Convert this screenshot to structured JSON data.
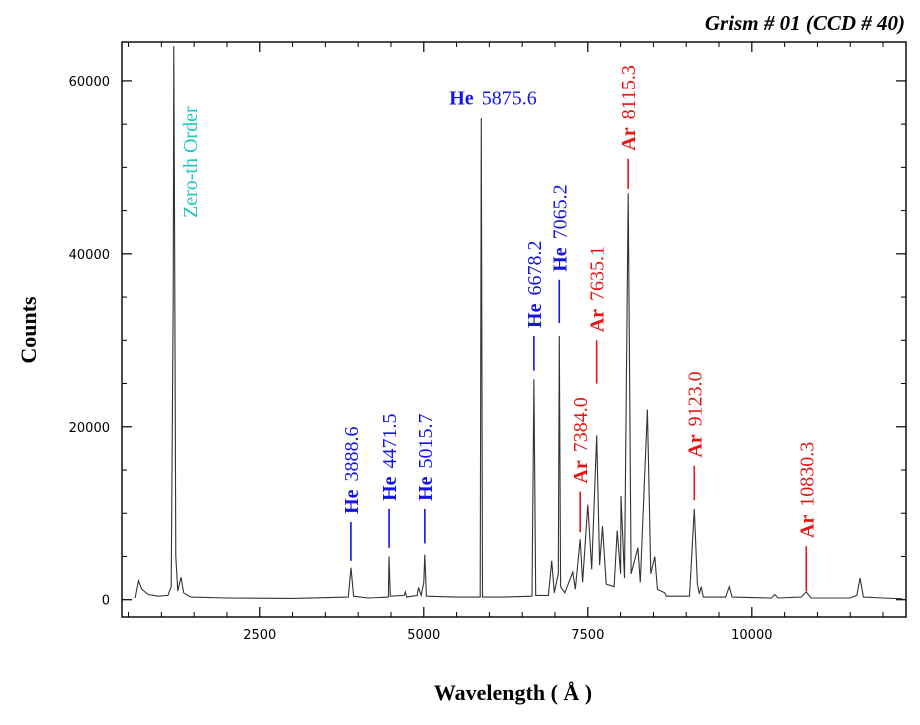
{
  "chart_data": {
    "type": "line",
    "title": "Grism # 01  (CCD # 40)",
    "xlabel": "Wavelength  ( Å )",
    "ylabel": "Counts",
    "xlim": [
      400,
      12350
    ],
    "ylim": [
      -2000,
      64500
    ],
    "xticks": [
      2500,
      5000,
      7500,
      10000
    ],
    "yticks": [
      0,
      20000,
      40000,
      60000
    ],
    "colors": {
      "he": "#1414e6",
      "ar": "#e61414",
      "zero": "#1ac8c8",
      "spectrum": "#333333"
    },
    "series": [
      {
        "values": [
          [
            600,
            200
          ],
          [
            650,
            2200
          ],
          [
            700,
            1200
          ],
          [
            800,
            600
          ],
          [
            950,
            400
          ],
          [
            1100,
            500
          ],
          [
            1150,
            1500
          ],
          [
            1180,
            35000
          ],
          [
            1190,
            64000
          ],
          [
            1200,
            45000
          ],
          [
            1220,
            5000
          ],
          [
            1250,
            1000
          ],
          [
            1300,
            2600
          ],
          [
            1340,
            800
          ],
          [
            1450,
            300
          ],
          [
            2000,
            200
          ],
          [
            3000,
            150
          ],
          [
            3850,
            300
          ],
          [
            3890,
            3700
          ],
          [
            3930,
            400
          ],
          [
            4150,
            200
          ],
          [
            4460,
            300
          ],
          [
            4470,
            5000
          ],
          [
            4490,
            400
          ],
          [
            4700,
            500
          ],
          [
            4720,
            900
          ],
          [
            4740,
            300
          ],
          [
            4900,
            500
          ],
          [
            4920,
            1400
          ],
          [
            4960,
            500
          ],
          [
            5000,
            2000
          ],
          [
            5015,
            5200
          ],
          [
            5040,
            400
          ],
          [
            5500,
            300
          ],
          [
            5860,
            300
          ],
          [
            5876,
            55700
          ],
          [
            5895,
            300
          ],
          [
            6200,
            300
          ],
          [
            6650,
            400
          ],
          [
            6678,
            25500
          ],
          [
            6705,
            500
          ],
          [
            6900,
            500
          ],
          [
            6950,
            4500
          ],
          [
            6990,
            800
          ],
          [
            7050,
            3000
          ],
          [
            7065,
            30500
          ],
          [
            7085,
            1500
          ],
          [
            7150,
            800
          ],
          [
            7272,
            3200
          ],
          [
            7310,
            1200
          ],
          [
            7384,
            7000
          ],
          [
            7420,
            2000
          ],
          [
            7500,
            11000
          ],
          [
            7560,
            3500
          ],
          [
            7635,
            19000
          ],
          [
            7680,
            4000
          ],
          [
            7724,
            8500
          ],
          [
            7780,
            1800
          ],
          [
            7900,
            1500
          ],
          [
            7948,
            8000
          ],
          [
            8000,
            3000
          ],
          [
            8006,
            12000
          ],
          [
            8060,
            2500
          ],
          [
            8115,
            47000
          ],
          [
            8160,
            3000
          ],
          [
            8264,
            6000
          ],
          [
            8300,
            2000
          ],
          [
            8408,
            22000
          ],
          [
            8460,
            3000
          ],
          [
            8521,
            5000
          ],
          [
            8560,
            1200
          ],
          [
            8670,
            800
          ],
          [
            8700,
            400
          ],
          [
            9050,
            400
          ],
          [
            9123,
            10500
          ],
          [
            9170,
            1800
          ],
          [
            9200,
            700
          ],
          [
            9230,
            1500
          ],
          [
            9260,
            300
          ],
          [
            9600,
            300
          ],
          [
            9657,
            1500
          ],
          [
            9700,
            300
          ],
          [
            10300,
            200
          ],
          [
            10350,
            600
          ],
          [
            10400,
            200
          ],
          [
            10750,
            300
          ],
          [
            10830,
            900
          ],
          [
            10900,
            200
          ],
          [
            11500,
            200
          ],
          [
            11600,
            500
          ],
          [
            11650,
            2500
          ],
          [
            11700,
            300
          ],
          [
            12000,
            200
          ],
          [
            12300,
            100
          ]
        ]
      }
    ],
    "annotations": [
      {
        "element": "",
        "wave": "Zero-th  Order",
        "x": 1190,
        "kind": "zero"
      },
      {
        "element": "He",
        "wave": "3888.6",
        "x": 3889,
        "kind": "he",
        "orient": "v",
        "tick_top": 9000,
        "tick_bottom": 4500
      },
      {
        "element": "He",
        "wave": "4471.5",
        "x": 4471,
        "kind": "he",
        "orient": "v",
        "tick_top": 10500,
        "tick_bottom": 6000
      },
      {
        "element": "He",
        "wave": "5015.7",
        "x": 5016,
        "kind": "he",
        "orient": "v",
        "tick_top": 10500,
        "tick_bottom": 6500
      },
      {
        "element": "He",
        "wave": "5875.6",
        "x": 5876,
        "kind": "he",
        "orient": "h",
        "label_y": 57300
      },
      {
        "element": "He",
        "wave": "6678.2",
        "x": 6678,
        "kind": "he",
        "orient": "v",
        "tick_top": 30500,
        "tick_bottom": 26500
      },
      {
        "element": "He",
        "wave": "7065.2",
        "x": 7065,
        "kind": "he",
        "orient": "v",
        "tick_top": 37000,
        "tick_bottom": 32000
      },
      {
        "element": "Ar",
        "wave": "7384.0",
        "x": 7384,
        "kind": "ar",
        "orient": "v",
        "tick_top": 12500,
        "tick_bottom": 7800
      },
      {
        "element": "Ar",
        "wave": "7635.1",
        "x": 7635,
        "kind": "ar",
        "orient": "v",
        "tick_top": 30000,
        "tick_bottom": 25000
      },
      {
        "element": "Ar",
        "wave": "8115.3",
        "x": 8115,
        "kind": "ar",
        "orient": "v",
        "tick_top": 51000,
        "tick_bottom": 47500
      },
      {
        "element": "Ar",
        "wave": "9123.0",
        "x": 9123,
        "kind": "ar",
        "orient": "v",
        "tick_top": 15500,
        "tick_bottom": 11500
      },
      {
        "element": "Ar",
        "wave": "10830.3",
        "x": 10830,
        "kind": "ar",
        "orient": "v",
        "tick_top": 6200,
        "tick_bottom": 1000
      }
    ]
  }
}
